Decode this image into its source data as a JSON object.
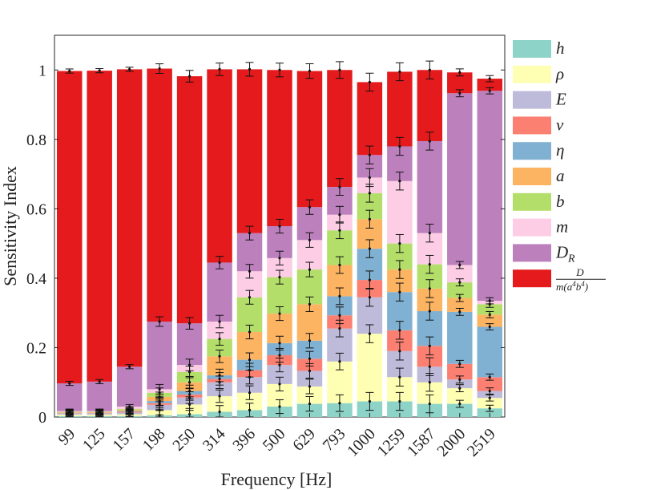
{
  "chart_data": {
    "type": "bar",
    "stacked": true,
    "xlabel": "Frequency [Hz]",
    "ylabel": "Sensitivity Index",
    "ylim": [
      0,
      1.1
    ],
    "yticks": [
      "0",
      "0.2",
      "0.4",
      "0.6",
      "0.8",
      "1"
    ],
    "categories": [
      "99",
      "125",
      "157",
      "198",
      "250",
      "314",
      "396",
      "500",
      "629",
      "793",
      "1000",
      "1259",
      "1587",
      "2000",
      "2519"
    ],
    "legend": "right-outside",
    "series": [
      {
        "name": "h",
        "color": "#8dd3c7",
        "values": [
          0.003,
          0.003,
          0.003,
          0.005,
          0.008,
          0.015,
          0.02,
          0.03,
          0.038,
          0.04,
          0.045,
          0.045,
          0.038,
          0.038,
          0.025
        ]
      },
      {
        "name": "ρ",
        "color": "#ffffb3",
        "values": [
          0.004,
          0.004,
          0.005,
          0.015,
          0.028,
          0.045,
          0.05,
          0.065,
          0.05,
          0.12,
          0.195,
          0.07,
          0.062,
          0.045,
          0.03
        ]
      },
      {
        "name": "E",
        "color": "#bebada",
        "values": [
          0.003,
          0.003,
          0.005,
          0.015,
          0.02,
          0.04,
          0.045,
          0.055,
          0.045,
          0.095,
          0.105,
          0.075,
          0.045,
          0.025,
          0.02
        ]
      },
      {
        "name": "ν",
        "color": "#fb8072",
        "values": [
          0.001,
          0.001,
          0.002,
          0.005,
          0.009,
          0.01,
          0.02,
          0.028,
          0.035,
          0.038,
          0.05,
          0.06,
          0.06,
          0.045,
          0.04
        ]
      },
      {
        "name": "η",
        "color": "#80b1d3",
        "values": [
          0.001,
          0.001,
          0.002,
          0.006,
          0.01,
          0.01,
          0.03,
          0.035,
          0.052,
          0.055,
          0.09,
          0.11,
          0.1,
          0.15,
          0.145
        ]
      },
      {
        "name": "a",
        "color": "#fdb462",
        "values": [
          0.002,
          0.002,
          0.003,
          0.012,
          0.025,
          0.055,
          0.08,
          0.085,
          0.105,
          0.09,
          0.085,
          0.065,
          0.065,
          0.04,
          0.035
        ]
      },
      {
        "name": "b",
        "color": "#b3de69",
        "values": [
          0.001,
          0.001,
          0.003,
          0.012,
          0.03,
          0.05,
          0.1,
          0.105,
          0.1,
          0.1,
          0.075,
          0.075,
          0.07,
          0.045,
          0.03
        ]
      },
      {
        "name": "m",
        "color": "#fccde5",
        "values": [
          0.002,
          0.002,
          0.007,
          0.01,
          0.02,
          0.05,
          0.075,
          0.055,
          0.085,
          0.045,
          0.045,
          0.18,
          0.09,
          0.05,
          0.01
        ]
      },
      {
        "name": "D_R",
        "color": "#bc80bd",
        "values": [
          0.08,
          0.085,
          0.115,
          0.195,
          0.12,
          0.17,
          0.11,
          0.092,
          0.095,
          0.08,
          0.065,
          0.1,
          0.265,
          0.495,
          0.605
        ]
      },
      {
        "name": "D/(m(a^4 b^4))",
        "color": "#e41a1c",
        "values": [
          0.9,
          0.896,
          0.857,
          0.729,
          0.712,
          0.557,
          0.472,
          0.45,
          0.392,
          0.337,
          0.21,
          0.215,
          0.205,
          0.06,
          0.035
        ]
      }
    ],
    "error_bar_halfwidth": [
      0.006,
      0.006,
      0.006,
      0.018,
      0.023,
      0.025,
      0.028,
      0.028,
      0.03,
      0.035,
      0.038,
      0.038,
      0.038,
      0.012,
      0.01
    ]
  }
}
